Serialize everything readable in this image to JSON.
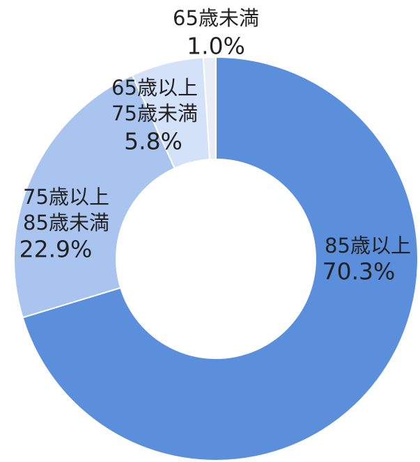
{
  "chart_data": {
    "type": "donut",
    "categories": [
      "85歳以上",
      "75歳以上\n85歳未満",
      "65歳以上\n75歳未満",
      "65歳未満"
    ],
    "values": [
      70.3,
      22.9,
      5.8,
      1.0
    ],
    "value_labels": [
      "70.3%",
      "22.9%",
      "5.8%",
      "1.0%"
    ],
    "colors": [
      "#5b8fdc",
      "#a9c5ef",
      "#d3e2f8",
      "#e9eef6"
    ]
  }
}
